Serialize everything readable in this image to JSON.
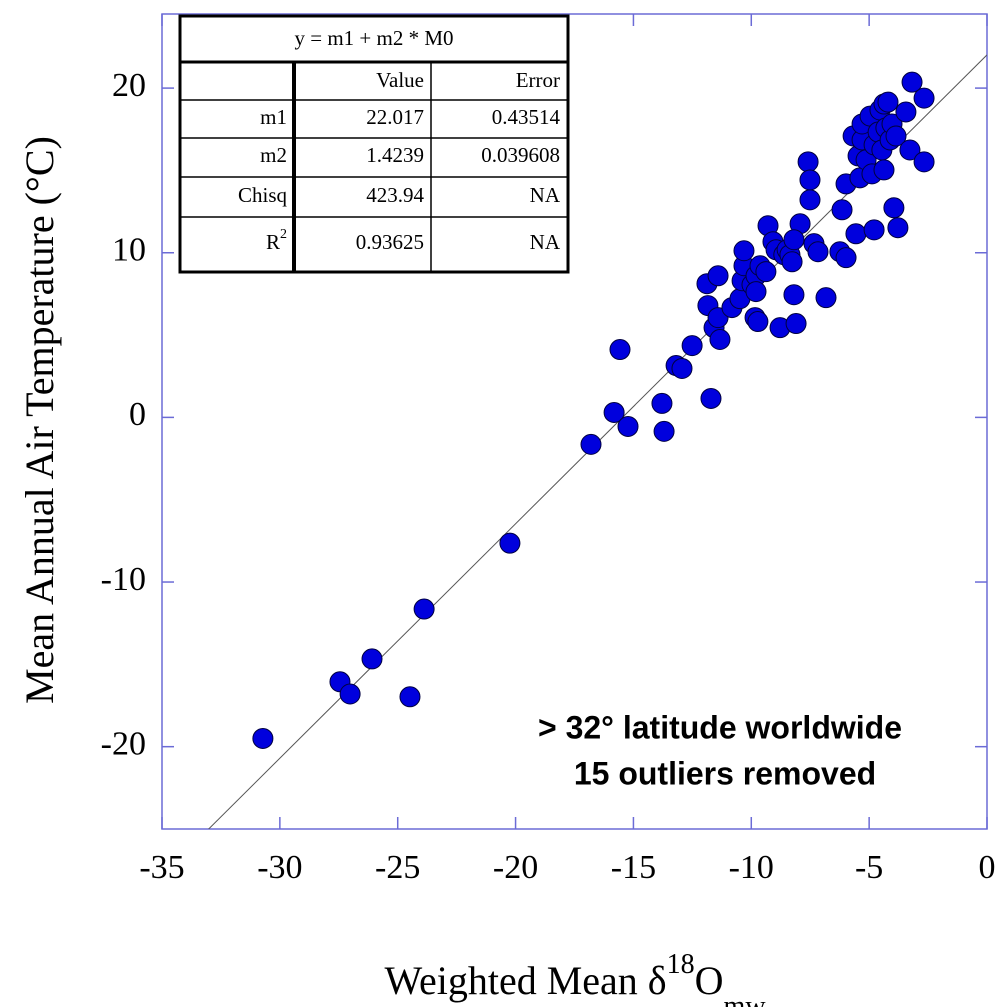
{
  "chart_data": {
    "type": "scatter",
    "x_label": [
      "Weighted Mean δ",
      "18",
      "O",
      "mw"
    ],
    "y_label": "Mean Annual Air Temperature (°C)",
    "annotations": [
      "> 32° latitude worldwide",
      "15 outliers removed"
    ],
    "xlim": [
      -35,
      0
    ],
    "xticks": [
      -35,
      -30,
      -25,
      -20,
      -15,
      -10,
      -5,
      0
    ],
    "ylim": [
      -25,
      24.5
    ],
    "yticks": [
      -20,
      -10,
      0,
      10,
      20
    ],
    "color": "#0000dd",
    "table": {
      "title": "y = m1 + m2 * M0",
      "header": [
        "Value",
        "Error"
      ],
      "rows": [
        {
          "label": "m1",
          "value": "22.017",
          "error": "0.43514"
        },
        {
          "label": "m2",
          "value": "1.4239",
          "error": "0.039608"
        },
        {
          "label": "Chisq",
          "value": "423.94",
          "error": "NA"
        },
        {
          "label": "R",
          "label_sup": "2",
          "value": "0.93625",
          "error": "NA"
        }
      ]
    },
    "x": [
      -30.72,
      -27.45,
      -27.02,
      -26.09,
      -24.48,
      -23.88,
      -20.24,
      -16.8,
      -15.82,
      -15.57,
      -15.23,
      -13.79,
      -13.7,
      -13.19,
      -12.94,
      -12.51,
      -11.71,
      -11.88,
      -11.84,
      -11.58,
      -11.41,
      -11.33,
      -11.41,
      -10.82,
      -10.48,
      -10.39,
      -10.31,
      -10.31,
      -9.97,
      -9.84,
      -9.72,
      -9.8,
      -9.63,
      -9.8,
      -9.38,
      -9.29,
      -9.08,
      -8.95,
      -8.62,
      -8.48,
      -8.78,
      -8.36,
      -8.27,
      -8.19,
      -8.1,
      -7.93,
      -8.19,
      -7.59,
      -7.51,
      -7.51,
      -7.34,
      -7.17,
      -6.83,
      -6.24,
      -6.15,
      -5.98,
      -5.98,
      -5.68,
      -5.56,
      -5.47,
      -5.39,
      -5.3,
      -5.3,
      -5.13,
      -4.96,
      -4.88,
      -4.79,
      -4.79,
      -4.62,
      -4.54,
      -4.46,
      -4.37,
      -4.37,
      -4.29,
      -4.2,
      -4.11,
      -4.03,
      -3.95,
      -3.86,
      -3.78,
      -3.44,
      -3.27,
      -3.18,
      -2.67,
      -2.67
    ],
    "y": [
      -19.5,
      -16.06,
      -16.8,
      -14.67,
      -16.97,
      -11.64,
      -7.64,
      -1.64,
      0.3,
      4.12,
      -0.55,
      0.85,
      -0.85,
      3.15,
      2.97,
      4.36,
      1.15,
      8.12,
      6.79,
      5.45,
      8.6,
      4.73,
      6.06,
      6.67,
      7.21,
      8.3,
      9.21,
      10.12,
      8.06,
      6.06,
      5.82,
      8.6,
      9.21,
      7.64,
      8.85,
      11.64,
      10.67,
      10.18,
      9.88,
      10.18,
      5.45,
      9.88,
      9.45,
      7.45,
      5.7,
      11.76,
      10.79,
      15.52,
      14.42,
      13.21,
      10.55,
      10.06,
      7.27,
      10.06,
      12.61,
      9.7,
      14.18,
      17.09,
      11.15,
      15.88,
      14.55,
      16.85,
      17.82,
      15.64,
      18.3,
      14.79,
      11.39,
      16.55,
      17.33,
      18.67,
      16.24,
      19.03,
      15.03,
      17.58,
      19.15,
      16.85,
      17.82,
      12.73,
      17.09,
      11.52,
      18.55,
      16.24,
      20.36,
      19.39,
      15.52
    ]
  }
}
